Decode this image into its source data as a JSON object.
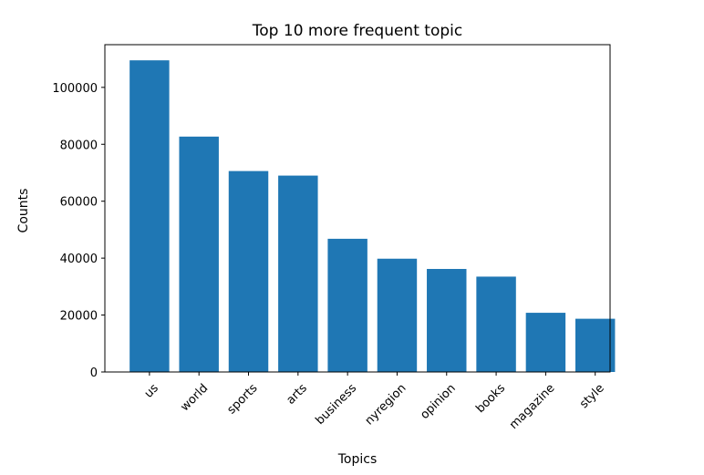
{
  "chart_data": {
    "type": "bar",
    "title": "Top 10 more frequent topic",
    "xlabel": "Topics",
    "ylabel": "Counts",
    "categories": [
      "us",
      "world",
      "sports",
      "arts",
      "business",
      "nyregion",
      "opinion",
      "books",
      "magazine",
      "style"
    ],
    "values": [
      109500,
      82700,
      70600,
      69000,
      46800,
      39800,
      36200,
      33500,
      20800,
      18700
    ],
    "ylim": [
      0,
      115000
    ],
    "yticks": [
      0,
      20000,
      40000,
      60000,
      80000,
      100000
    ],
    "ytick_labels": [
      "0",
      "20000",
      "40000",
      "60000",
      "80000",
      "100000"
    ],
    "bar_color": "#1f77b4",
    "grid": false,
    "legend": "none"
  }
}
